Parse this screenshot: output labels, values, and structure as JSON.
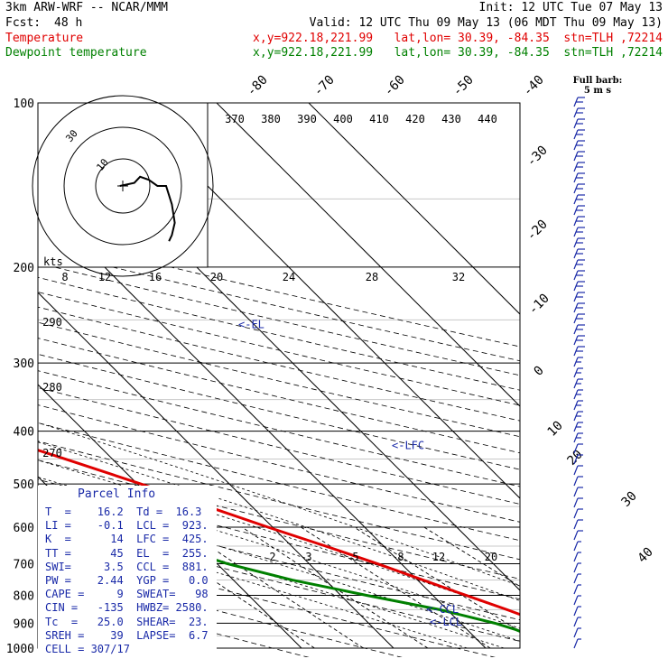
{
  "header": {
    "model": "3km ARW-WRF -- NCAR/MMM",
    "init": "Init: 12 UTC Tue 07 May 13",
    "fcst_label": "Fcst:",
    "fcst_hours": "48 h",
    "valid": "Valid: 12 UTC Thu 09 May 13 (06 MDT Thu 09 May 13)",
    "temp_name": "Temperature",
    "temp_loc": "x,y=922.18,221.99   lat,lon= 30.39, -84.35  stn=TLH ,72214",
    "dew_name": "Dewpoint temperature",
    "dew_loc": "x,y=922.18,221.99   lat,lon= 30.39, -84.35  stn=TLH ,72214"
  },
  "barb_legend": {
    "line1": "Full barb:",
    "line2": "5 m s"
  },
  "hodograph": {
    "kts_label": "kts",
    "ring_labels": [
      "30",
      "10"
    ],
    "speed_labels": [
      "8",
      "12",
      "16",
      "20",
      "24",
      "28",
      "32"
    ]
  },
  "theta_labels": [
    "370",
    "380",
    "390",
    "400",
    "410",
    "420",
    "430",
    "440"
  ],
  "dry_adiabat_labels": [
    "290",
    "280",
    "270"
  ],
  "isotherm_labels": [
    "-80",
    "-70",
    "-60",
    "-50",
    "-40",
    "-30",
    "-20",
    "-10",
    "0",
    "10",
    "20",
    "30",
    "40"
  ],
  "mixing_ratio_labels": [
    "2",
    "3",
    "5",
    "8",
    "12",
    "20"
  ],
  "level_labels": {
    "el": "<-EL",
    "lfc": "<-LFC",
    "ccl": "<-CCL",
    "lcl": "<-LCL"
  },
  "parcel_info": {
    "title": "Parcel Info",
    "rows": [
      "T  =    16.2  Td =  16.3",
      "LI =    -0.1  LCL =  923.",
      "K  =      14  LFC =  425.",
      "TT =      45  EL  =  255.",
      "SWI=     3.5  CCL =  881.",
      "PW =    2.44  YGP =   0.0",
      "CAPE =     9  SWEAT=   98",
      "CIN =   -135  HWBZ= 2580.",
      "Tc  =   25.0  SHEAR=  23.",
      "SREH =    39  LAPSE=  6.7",
      "CELL = 307/17"
    ]
  },
  "colors": {
    "temperature": "#e00000",
    "dewpoint": "#008000",
    "barbs": "#1a2aa8",
    "parcel": "#1a2aa8"
  },
  "chart_data": {
    "type": "line",
    "chart_kind": "skew-T log-P sounding",
    "y_axis": "pressure (hPa), log scale, inverted",
    "ylim": [
      1000,
      100
    ],
    "pressure_ticks": [
      100,
      200,
      300,
      400,
      500,
      600,
      700,
      800,
      900,
      1000
    ],
    "x_axis": "temperature (C), skewed 45 degrees",
    "series": [
      {
        "name": "Temperature",
        "pressure": [
          1000,
          975,
          950,
          925,
          900,
          850,
          800,
          750,
          700,
          650,
          600,
          550,
          500,
          450,
          400,
          350,
          300,
          270,
          250,
          230,
          200,
          175,
          150,
          125,
          100
        ],
        "temperature": [
          17.2,
          24.3,
          22.2,
          20.3,
          19.0,
          16.5,
          13.6,
          10.6,
          7.4,
          3.7,
          -0.5,
          -4.8,
          -9.6,
          -15.1,
          -21.5,
          -28.7,
          -37.2,
          -43.0,
          -48.8,
          -54.2,
          -58.5,
          -60.2,
          -60.5,
          -58.2,
          -55.8
        ]
      },
      {
        "name": "Dewpoint temperature",
        "pressure": [
          1000,
          975,
          950,
          925,
          900,
          850,
          800,
          750,
          700,
          650,
          600,
          550,
          500,
          475,
          450,
          400,
          350,
          300,
          270,
          250,
          200,
          175,
          150,
          125,
          100
        ],
        "dewpoint": [
          16.3,
          16.4,
          16.3,
          15.3,
          13.7,
          9.2,
          2.8,
          -3.6,
          -8.9,
          -12.9,
          -16.1,
          -18.6,
          -27.5,
          -37.9,
          -44.4,
          -46.3,
          -47.7,
          -48.6,
          -49.1,
          -50.6,
          -57.7,
          -62.4,
          -67.3,
          -74.8,
          -83.3
        ]
      }
    ],
    "isotherms_c": [
      -80,
      -70,
      -60,
      -50,
      -40,
      -30,
      -20,
      -10,
      0,
      10,
      20,
      30,
      40
    ],
    "mixing_ratios_gkg": [
      2,
      3,
      5,
      8,
      12,
      20
    ],
    "parcel_levels_hpa": {
      "LCL": 923,
      "CCL": 881,
      "LFC": 425,
      "EL": 255
    },
    "hodograph_trace": [
      [
        -1,
        0
      ],
      [
        4,
        -1
      ],
      [
        6,
        -3
      ],
      [
        9,
        -2
      ],
      [
        12,
        0
      ],
      [
        15,
        0
      ],
      [
        17,
        6
      ],
      [
        18,
        12
      ],
      [
        17,
        16
      ],
      [
        16,
        18
      ]
    ]
  }
}
